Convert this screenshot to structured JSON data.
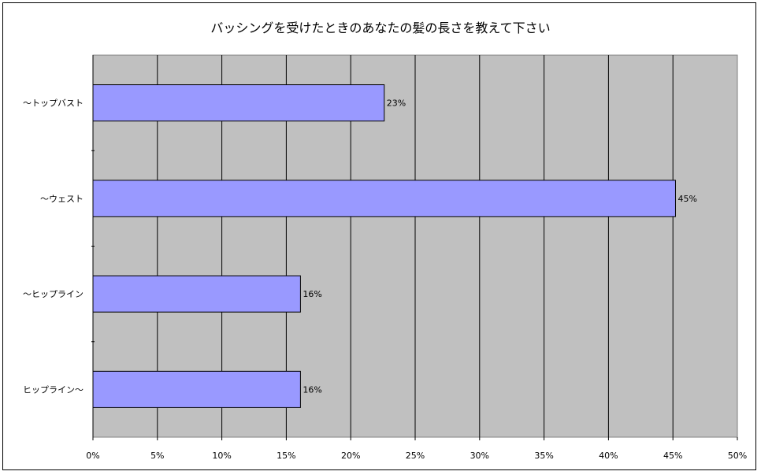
{
  "chart_data": {
    "type": "bar",
    "orientation": "horizontal",
    "title": "バッシングを受けたときのあなたの髪の長さを教えて下さい",
    "xlabel": "",
    "ylabel": "",
    "categories": [
      "～トップバスト",
      "～ウェスト",
      "～ヒップライン",
      "ヒップライン～"
    ],
    "values": [
      22.6,
      45.2,
      16.1,
      16.1
    ],
    "data_labels": [
      "23%",
      "45%",
      "16%",
      "16%"
    ],
    "xlim": [
      0,
      50
    ],
    "x_ticks": [
      "0%",
      "5%",
      "10%",
      "15%",
      "20%",
      "25%",
      "30%",
      "35%",
      "40%",
      "45%",
      "50%"
    ],
    "grid": "vertical",
    "legend": "none",
    "colors": {
      "bar_fill": "#9999ff",
      "bar_stroke": "#000000",
      "plot_background": "#c0c0c0",
      "gridline": "#000000"
    }
  }
}
